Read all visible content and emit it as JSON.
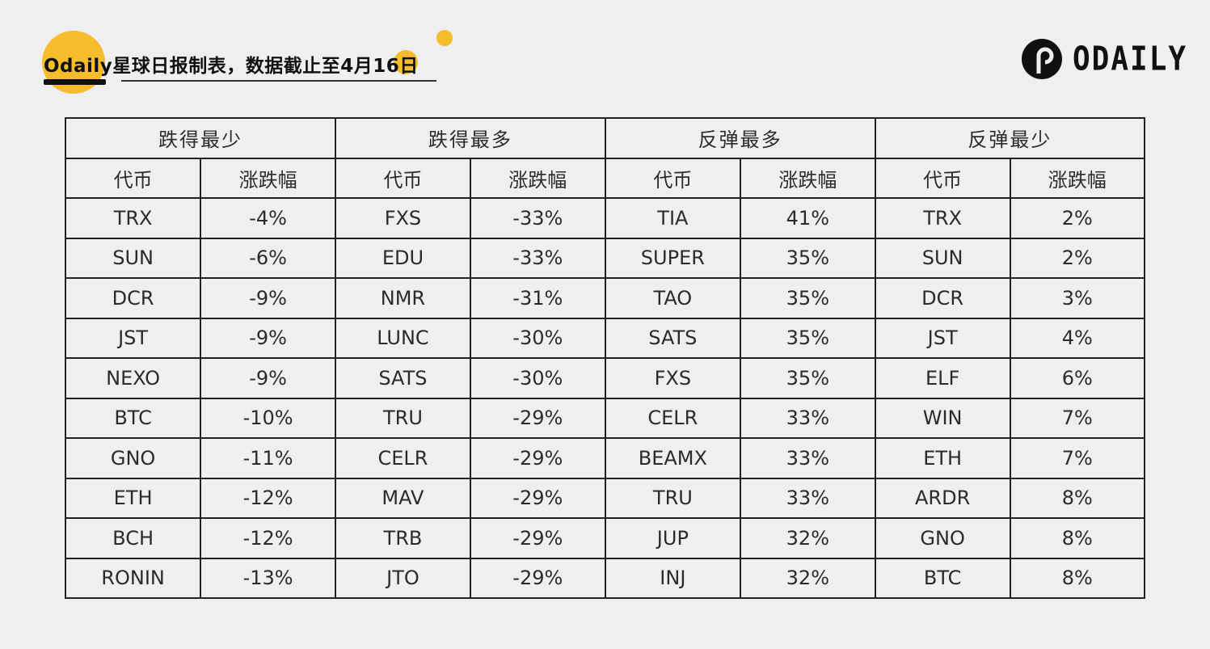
{
  "header": {
    "title": "Odaily星球日报制表，数据截止至4月16日"
  },
  "logo": {
    "text": "ODAILY",
    "icon": "odaily-logo-icon"
  },
  "colors": {
    "accent": "#f5bd2c",
    "background": "#efefef",
    "border": "#222222"
  },
  "chart_data": {
    "type": "table",
    "groups": [
      {
        "title": "跌得最少",
        "columns": [
          "代币",
          "涨跌幅"
        ],
        "rows": [
          [
            "TRX",
            "-4%"
          ],
          [
            "SUN",
            "-6%"
          ],
          [
            "DCR",
            "-9%"
          ],
          [
            "JST",
            "-9%"
          ],
          [
            "NEXO",
            "-9%"
          ],
          [
            "BTC",
            "-10%"
          ],
          [
            "GNO",
            "-11%"
          ],
          [
            "ETH",
            "-12%"
          ],
          [
            "BCH",
            "-12%"
          ],
          [
            "RONIN",
            "-13%"
          ]
        ]
      },
      {
        "title": "跌得最多",
        "columns": [
          "代币",
          "涨跌幅"
        ],
        "rows": [
          [
            "FXS",
            "-33%"
          ],
          [
            "EDU",
            "-33%"
          ],
          [
            "NMR",
            "-31%"
          ],
          [
            "LUNC",
            "-30%"
          ],
          [
            "SATS",
            "-30%"
          ],
          [
            "TRU",
            "-29%"
          ],
          [
            "CELR",
            "-29%"
          ],
          [
            "MAV",
            "-29%"
          ],
          [
            "TRB",
            "-29%"
          ],
          [
            "JTO",
            "-29%"
          ]
        ]
      },
      {
        "title": "反弹最多",
        "columns": [
          "代币",
          "涨跌幅"
        ],
        "rows": [
          [
            "TIA",
            "41%"
          ],
          [
            "SUPER",
            "35%"
          ],
          [
            "TAO",
            "35%"
          ],
          [
            "SATS",
            "35%"
          ],
          [
            "FXS",
            "35%"
          ],
          [
            "CELR",
            "33%"
          ],
          [
            "BEAMX",
            "33%"
          ],
          [
            "TRU",
            "33%"
          ],
          [
            "JUP",
            "32%"
          ],
          [
            "INJ",
            "32%"
          ]
        ]
      },
      {
        "title": "反弹最少",
        "columns": [
          "代币",
          "涨跌幅"
        ],
        "rows": [
          [
            "TRX",
            "2%"
          ],
          [
            "SUN",
            "2%"
          ],
          [
            "DCR",
            "3%"
          ],
          [
            "JST",
            "4%"
          ],
          [
            "ELF",
            "6%"
          ],
          [
            "WIN",
            "7%"
          ],
          [
            "ETH",
            "7%"
          ],
          [
            "ARDR",
            "8%"
          ],
          [
            "GNO",
            "8%"
          ],
          [
            "BTC",
            "8%"
          ]
        ]
      }
    ]
  }
}
